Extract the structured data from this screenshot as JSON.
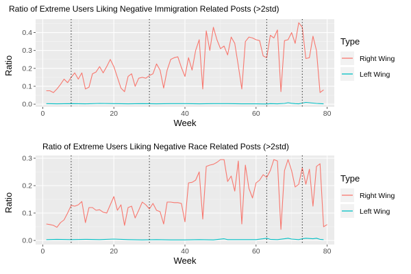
{
  "chart_data": [
    {
      "type": "line",
      "title": "Ratio of Extreme Users Liking Negative Immigration Related Posts (>2std)",
      "xlabel": "Week",
      "ylabel": "Ratio",
      "xlim": [
        -2,
        82
      ],
      "ylim": [
        -0.015,
        0.475
      ],
      "x_ticks": [
        "0",
        "20",
        "40",
        "60",
        "80"
      ],
      "y_ticks": [
        "0.0",
        "0.1",
        "0.2",
        "0.3",
        "0.4"
      ],
      "vlines": [
        8,
        30,
        63,
        73
      ],
      "legend": {
        "title": "Type",
        "position": "right"
      },
      "series": [
        {
          "name": "Right Wing",
          "color": "#F8766D",
          "points": [
            [
              1,
              0.075
            ],
            [
              2,
              0.075
            ],
            [
              3,
              0.065
            ],
            [
              4,
              0.085
            ],
            [
              5,
              0.11
            ],
            [
              6,
              0.14
            ],
            [
              7,
              0.12
            ],
            [
              8,
              0.15
            ],
            [
              9,
              0.175
            ],
            [
              10,
              0.14
            ],
            [
              11,
              0.175
            ],
            [
              12,
              0.085
            ],
            [
              13,
              0.095
            ],
            [
              14,
              0.17
            ],
            [
              15,
              0.18
            ],
            [
              16,
              0.21
            ],
            [
              17,
              0.175
            ],
            [
              18,
              0.21
            ],
            [
              19,
              0.25
            ],
            [
              20,
              0.21
            ],
            [
              21,
              0.15
            ],
            [
              22,
              0.09
            ],
            [
              23,
              0.07
            ],
            [
              24,
              0.155
            ],
            [
              25,
              0.17
            ],
            [
              26,
              0.1
            ],
            [
              27,
              0.145
            ],
            [
              28,
              0.15
            ],
            [
              29,
              0.145
            ],
            [
              30,
              0.16
            ],
            [
              31,
              0.17
            ],
            [
              32,
              0.225
            ],
            [
              33,
              0.19
            ],
            [
              34,
              0.09
            ],
            [
              35,
              0.19
            ],
            [
              36,
              0.25
            ],
            [
              37,
              0.26
            ],
            [
              38,
              0.265
            ],
            [
              39,
              0.205
            ],
            [
              40,
              0.155
            ],
            [
              41,
              0.26
            ],
            [
              42,
              0.19
            ],
            [
              43,
              0.3
            ],
            [
              44,
              0.36
            ],
            [
              45,
              0.085
            ],
            [
              46,
              0.41
            ],
            [
              47,
              0.3
            ],
            [
              48,
              0.43
            ],
            [
              49,
              0.36
            ],
            [
              50,
              0.31
            ],
            [
              51,
              0.325
            ],
            [
              52,
              0.275
            ],
            [
              53,
              0.375
            ],
            [
              54,
              0.34
            ],
            [
              55,
              0.215
            ],
            [
              56,
              0.085
            ],
            [
              57,
              0.35
            ],
            [
              58,
              0.375
            ],
            [
              59,
              0.37
            ],
            [
              60,
              0.36
            ],
            [
              61,
              0.355
            ],
            [
              62,
              0.27
            ],
            [
              63,
              0.26
            ],
            [
              64,
              0.385
            ],
            [
              65,
              0.37
            ],
            [
              66,
              0.415
            ],
            [
              67,
              0.07
            ],
            [
              68,
              0.355
            ],
            [
              69,
              0.36
            ],
            [
              70,
              0.4
            ],
            [
              71,
              0.34
            ],
            [
              72,
              0.455
            ],
            [
              73,
              0.43
            ],
            [
              74,
              0.255
            ],
            [
              75,
              0.26
            ],
            [
              76,
              0.38
            ],
            [
              77,
              0.3
            ],
            [
              78,
              0.065
            ],
            [
              79,
              0.08
            ]
          ]
        },
        {
          "name": "Left Wing",
          "color": "#00BFC4",
          "points": [
            [
              1,
              0.003
            ],
            [
              4,
              0.002
            ],
            [
              8,
              0.003
            ],
            [
              12,
              0.002
            ],
            [
              16,
              0.004
            ],
            [
              20,
              0.003
            ],
            [
              24,
              0.002
            ],
            [
              28,
              0.003
            ],
            [
              32,
              0.002
            ],
            [
              36,
              0.003
            ],
            [
              40,
              0.003
            ],
            [
              44,
              0.002
            ],
            [
              48,
              0.003
            ],
            [
              52,
              0.003
            ],
            [
              56,
              0.002
            ],
            [
              60,
              0.002
            ],
            [
              63,
              0.001
            ],
            [
              64,
              0.003
            ],
            [
              66,
              0.002
            ],
            [
              68,
              0.004
            ],
            [
              69,
              0.008
            ],
            [
              70,
              0.005
            ],
            [
              71,
              0.003
            ],
            [
              72,
              0.002
            ],
            [
              73,
              0.006
            ],
            [
              74,
              0.01
            ],
            [
              75,
              0.008
            ],
            [
              76,
              0.006
            ],
            [
              77,
              0.004
            ],
            [
              78,
              0.003
            ],
            [
              79,
              0.002
            ]
          ]
        }
      ]
    },
    {
      "type": "line",
      "title": "Ratio of Extreme Users Liking Negative Race Related Posts (>2std)",
      "xlabel": "Week",
      "ylabel": "Ratio",
      "xlim": [
        -2,
        82
      ],
      "ylim": [
        -0.015,
        0.31
      ],
      "x_ticks": [
        "0",
        "20",
        "40",
        "60",
        "80"
      ],
      "y_ticks": [
        "0.0",
        "0.1",
        "0.2",
        "0.3"
      ],
      "vlines": [
        8,
        30,
        63,
        73
      ],
      "legend": {
        "title": "Type",
        "position": "right"
      },
      "series": [
        {
          "name": "Right Wing",
          "color": "#F8766D",
          "points": [
            [
              1,
              0.06
            ],
            [
              2,
              0.058
            ],
            [
              3,
              0.055
            ],
            [
              4,
              0.048
            ],
            [
              5,
              0.065
            ],
            [
              6,
              0.075
            ],
            [
              7,
              0.1
            ],
            [
              8,
              0.128
            ],
            [
              9,
              0.125
            ],
            [
              10,
              0.13
            ],
            [
              11,
              0.142
            ],
            [
              12,
              0.065
            ],
            [
              13,
              0.12
            ],
            [
              14,
              0.12
            ],
            [
              15,
              0.11
            ],
            [
              16,
              0.112
            ],
            [
              17,
              0.103
            ],
            [
              18,
              0.1
            ],
            [
              19,
              0.13
            ],
            [
              20,
              0.16
            ],
            [
              21,
              0.11
            ],
            [
              22,
              0.13
            ],
            [
              23,
              0.055
            ],
            [
              24,
              0.12
            ],
            [
              25,
              0.125
            ],
            [
              26,
              0.082
            ],
            [
              27,
              0.11
            ],
            [
              28,
              0.14
            ],
            [
              29,
              0.13
            ],
            [
              30,
              0.115
            ],
            [
              31,
              0.135
            ],
            [
              32,
              0.11
            ],
            [
              33,
              0.105
            ],
            [
              34,
              0.06
            ],
            [
              35,
              0.14
            ],
            [
              36,
              0.14
            ],
            [
              37,
              0.138
            ],
            [
              38,
              0.138
            ],
            [
              39,
              0.135
            ],
            [
              40,
              0.068
            ],
            [
              41,
              0.21
            ],
            [
              42,
              0.212
            ],
            [
              43,
              0.22
            ],
            [
              44,
              0.25
            ],
            [
              45,
              0.078
            ],
            [
              46,
              0.27
            ],
            [
              47,
              0.275
            ],
            [
              48,
              0.278
            ],
            [
              49,
              0.285
            ],
            [
              50,
              0.295
            ],
            [
              51,
              0.295
            ],
            [
              52,
              0.215
            ],
            [
              53,
              0.235
            ],
            [
              54,
              0.18
            ],
            [
              55,
              0.29
            ],
            [
              56,
              0.06
            ],
            [
              57,
              0.275
            ],
            [
              58,
              0.19
            ],
            [
              59,
              0.155
            ],
            [
              60,
              0.21
            ],
            [
              61,
              0.22
            ],
            [
              62,
              0.24
            ],
            [
              63,
              0.23
            ],
            [
              64,
              0.255
            ],
            [
              65,
              0.295
            ],
            [
              66,
              0.29
            ],
            [
              67,
              0.04
            ],
            [
              68,
              0.255
            ],
            [
              69,
              0.295
            ],
            [
              70,
              0.255
            ],
            [
              71,
              0.195
            ],
            [
              72,
              0.205
            ],
            [
              73,
              0.265
            ],
            [
              74,
              0.205
            ],
            [
              75,
              0.26
            ],
            [
              76,
              0.125
            ],
            [
              77,
              0.27
            ],
            [
              78,
              0.28
            ],
            [
              79,
              0.05
            ],
            [
              80,
              0.058
            ]
          ]
        },
        {
          "name": "Left Wing",
          "color": "#00BFC4",
          "points": [
            [
              1,
              0.003
            ],
            [
              4,
              0.004
            ],
            [
              8,
              0.003
            ],
            [
              12,
              0.004
            ],
            [
              16,
              0.003
            ],
            [
              20,
              0.005
            ],
            [
              24,
              0.003
            ],
            [
              28,
              0.002
            ],
            [
              32,
              0.003
            ],
            [
              36,
              0.002
            ],
            [
              40,
              0.002
            ],
            [
              44,
              0.003
            ],
            [
              48,
              0.002
            ],
            [
              51,
              0.006
            ],
            [
              52,
              0.003
            ],
            [
              56,
              0.003
            ],
            [
              60,
              0.003
            ],
            [
              62,
              0.006
            ],
            [
              63,
              0.008
            ],
            [
              64,
              0.004
            ],
            [
              66,
              0.003
            ],
            [
              68,
              0.006
            ],
            [
              69,
              0.008
            ],
            [
              70,
              0.005
            ],
            [
              72,
              0.003
            ],
            [
              73,
              0.006
            ],
            [
              74,
              0.008
            ],
            [
              76,
              0.006
            ],
            [
              77,
              0.008
            ],
            [
              78,
              0.004
            ],
            [
              79,
              0.003
            ]
          ]
        }
      ]
    }
  ]
}
